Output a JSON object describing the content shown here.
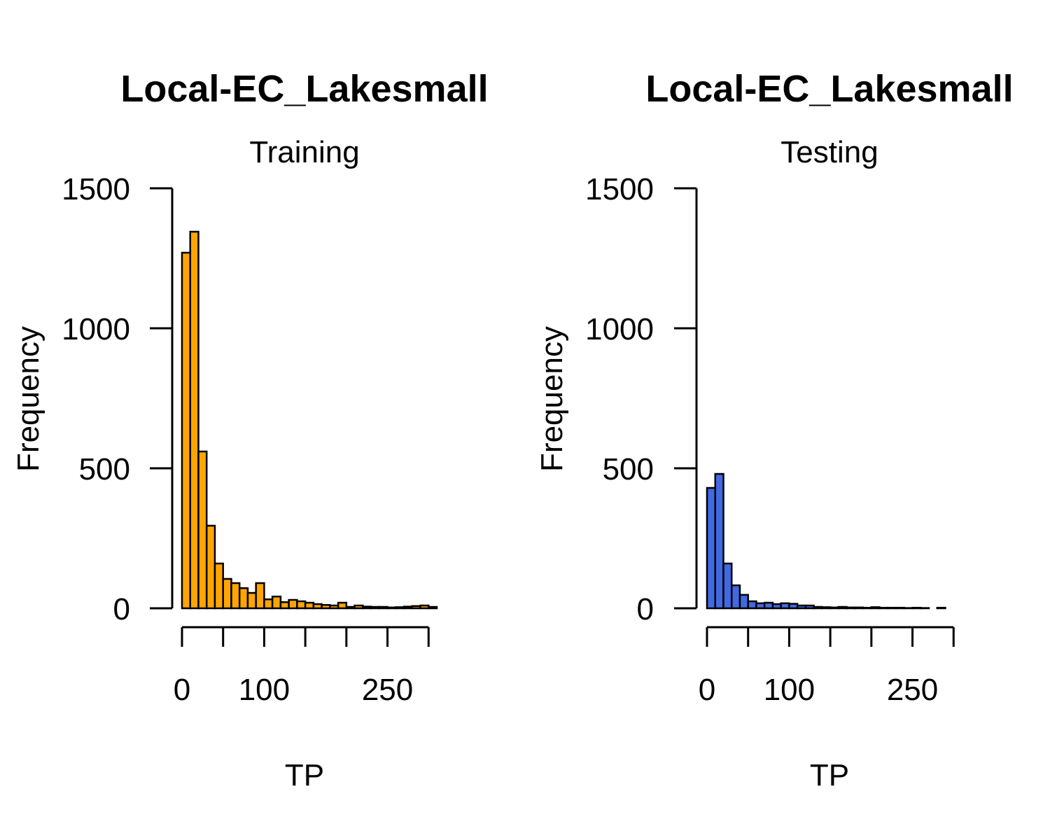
{
  "chart_data": [
    {
      "type": "bar",
      "title": "Local-EC_Lakesmall",
      "subtitle": "Training",
      "xlabel": "TP",
      "ylabel": "Frequency",
      "color": "#FFA500",
      "xlim": [
        0,
        310
      ],
      "ylim": [
        0,
        1500
      ],
      "xticks": [
        0,
        50,
        100,
        150,
        200,
        250,
        300
      ],
      "xtick_labels": [
        "0",
        "",
        "100",
        "",
        "",
        "250",
        ""
      ],
      "yticks": [
        0,
        500,
        1000,
        1500
      ],
      "ytick_labels": [
        "0",
        "500",
        "1000",
        "1500"
      ],
      "bin_width": 10,
      "bin_start": 0,
      "values": [
        1270,
        1345,
        560,
        295,
        160,
        105,
        90,
        72,
        55,
        90,
        32,
        42,
        22,
        30,
        25,
        20,
        15,
        12,
        10,
        20,
        5,
        10,
        6,
        5,
        5,
        3,
        4,
        6,
        8,
        10,
        5
      ]
    },
    {
      "type": "bar",
      "title": "Local-EC_Lakesmall",
      "subtitle": "Testing",
      "xlabel": "TP",
      "ylabel": "Frequency",
      "color": "#4169E1",
      "xlim": [
        0,
        310
      ],
      "ylim": [
        0,
        1500
      ],
      "xticks": [
        0,
        50,
        100,
        150,
        200,
        250,
        300
      ],
      "xtick_labels": [
        "0",
        "",
        "100",
        "",
        "",
        "250",
        ""
      ],
      "yticks": [
        0,
        500,
        1000,
        1500
      ],
      "ytick_labels": [
        "0",
        "500",
        "1000",
        "1500"
      ],
      "bin_width": 10,
      "bin_start": 0,
      "values": [
        430,
        480,
        160,
        82,
        48,
        25,
        18,
        20,
        15,
        18,
        16,
        10,
        10,
        5,
        4,
        3,
        5,
        3,
        3,
        2,
        4,
        2,
        2,
        2,
        1,
        2,
        1,
        0,
        2,
        0
      ]
    }
  ]
}
